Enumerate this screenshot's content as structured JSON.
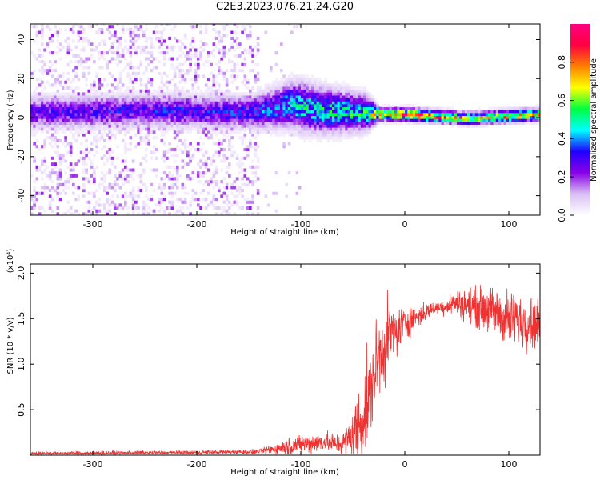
{
  "title": "C2E3.2023.076.21.24.G20",
  "chart_data": [
    {
      "type": "heatmap",
      "title": "C2E3.2023.076.21.24.G20",
      "xlabel": "Height of straight line (km)",
      "ylabel": "Frequency (Hz)",
      "xlim": [
        -360,
        130
      ],
      "ylim": [
        -50,
        48
      ],
      "x_ticks": [
        -300,
        -200,
        -100,
        0,
        100
      ],
      "y_ticks": [
        -40,
        -20,
        0,
        20,
        40
      ],
      "colorbar": {
        "label": "Normalized spectral amplitude",
        "range": [
          0.0,
          1.0
        ],
        "ticks": [
          "0.0",
          "0.2",
          "0.4",
          "0.6",
          "0.8"
        ],
        "colormap": [
          "#ffffff",
          "#d9bff5",
          "#8a00e6",
          "#2000ff",
          "#00ffff",
          "#00ff40",
          "#ffff00",
          "#ff8000",
          "#ff0040",
          "#ff0080"
        ]
      },
      "band_center_hz": [
        {
          "x": -360,
          "f": 2
        },
        {
          "x": -250,
          "f": 3
        },
        {
          "x": -150,
          "f": 2
        },
        {
          "x": -110,
          "f": 6
        },
        {
          "x": -80,
          "f": 3
        },
        {
          "x": -40,
          "f": 2
        },
        {
          "x": -25,
          "f": 1
        },
        {
          "x": 0,
          "f": 1
        },
        {
          "x": 60,
          "f": -1
        },
        {
          "x": 100,
          "f": 0
        },
        {
          "x": 130,
          "f": 1
        }
      ],
      "band_halfwidth_hz": [
        {
          "x": -360,
          "w": 8
        },
        {
          "x": -150,
          "w": 8
        },
        {
          "x": -100,
          "w": 12
        },
        {
          "x": -40,
          "w": 9
        },
        {
          "x": -25,
          "w": 3
        },
        {
          "x": 130,
          "w": 3
        }
      ],
      "band_peak_amplitude": [
        {
          "x": -360,
          "a": 0.3
        },
        {
          "x": -150,
          "a": 0.35
        },
        {
          "x": -100,
          "a": 0.5
        },
        {
          "x": -40,
          "a": 0.55
        },
        {
          "x": -25,
          "a": 0.8
        },
        {
          "x": 10,
          "a": 0.95
        },
        {
          "x": 50,
          "a": 0.8
        },
        {
          "x": 130,
          "a": 0.75
        }
      ]
    },
    {
      "type": "line",
      "xlabel": "Height of straight line (km)",
      "ylabel": "SNR (10 * v/v)",
      "multiplier": "(x10⁴)",
      "color": "#ee3333",
      "xlim": [
        -360,
        130
      ],
      "ylim": [
        0,
        2.1
      ],
      "x_ticks": [
        -300,
        -200,
        -100,
        0,
        100
      ],
      "y_ticks": [
        "0.5",
        "1.0",
        "1.5",
        "2.0"
      ],
      "trend": [
        {
          "x": -360,
          "y": 0.02
        },
        {
          "x": -200,
          "y": 0.03
        },
        {
          "x": -140,
          "y": 0.04
        },
        {
          "x": -110,
          "y": 0.1
        },
        {
          "x": -80,
          "y": 0.15
        },
        {
          "x": -60,
          "y": 0.12
        },
        {
          "x": -45,
          "y": 0.3
        },
        {
          "x": -35,
          "y": 0.6
        },
        {
          "x": -25,
          "y": 1.1
        },
        {
          "x": -15,
          "y": 1.3
        },
        {
          "x": 0,
          "y": 1.45
        },
        {
          "x": 25,
          "y": 1.6
        },
        {
          "x": 50,
          "y": 1.67
        },
        {
          "x": 80,
          "y": 1.6
        },
        {
          "x": 100,
          "y": 1.5
        },
        {
          "x": 130,
          "y": 1.45
        }
      ],
      "noise_amplitude": [
        {
          "x": -360,
          "n": 0.015
        },
        {
          "x": -140,
          "n": 0.02
        },
        {
          "x": -110,
          "n": 0.08
        },
        {
          "x": -60,
          "n": 0.1
        },
        {
          "x": -40,
          "n": 0.4
        },
        {
          "x": -20,
          "n": 0.35
        },
        {
          "x": 0,
          "n": 0.15
        },
        {
          "x": 30,
          "n": 0.05
        },
        {
          "x": 60,
          "n": 0.15
        },
        {
          "x": 100,
          "n": 0.25
        },
        {
          "x": 130,
          "n": 0.22
        }
      ]
    }
  ]
}
